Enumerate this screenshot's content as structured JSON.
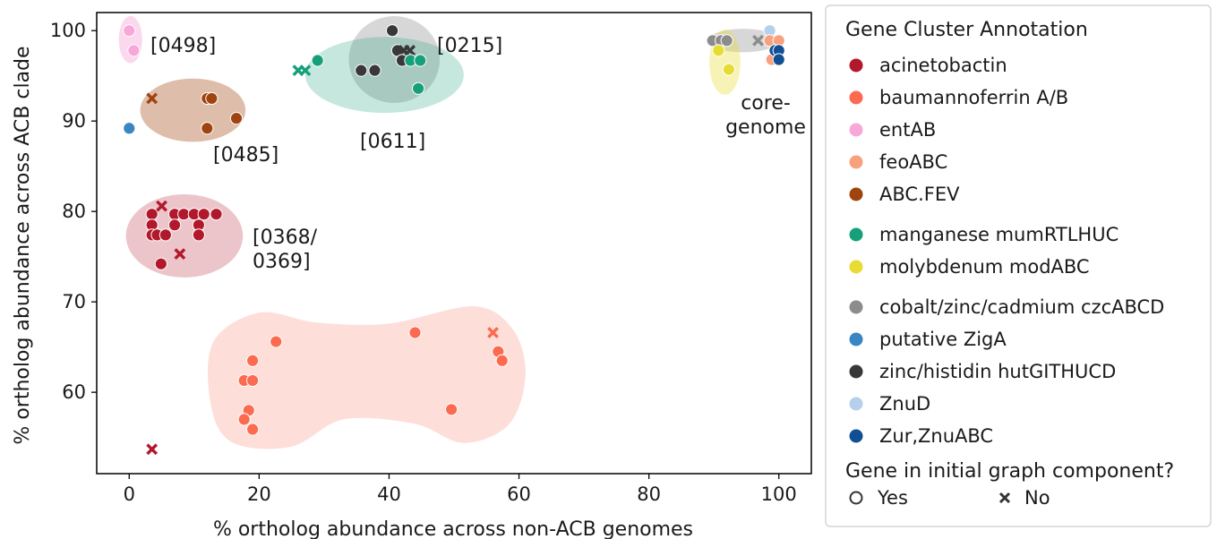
{
  "chart_data": {
    "type": "scatter",
    "title": "",
    "xlabel": "% ortholog abundance across non-ACB genomes",
    "ylabel": "% ortholog abundance across ACB clade",
    "xlim": [
      -5,
      105
    ],
    "ylim": [
      51,
      102
    ],
    "xticks": [
      0,
      20,
      40,
      60,
      80,
      100
    ],
    "yticks": [
      60,
      70,
      80,
      90,
      100
    ],
    "grid": false,
    "legend_position": "right, outside plot",
    "legend_title": "Gene Cluster Annotation",
    "legend_groups": [
      [
        {
          "name": "acinetobactin",
          "color": "#b2182b"
        },
        {
          "name": "baumannoferrin A/B",
          "color": "#fc6a4f"
        },
        {
          "name": "entAB",
          "color": "#f7a8d8"
        },
        {
          "name": "feoABC",
          "color": "#f9a07c"
        },
        {
          "name": "ABC.FEV",
          "color": "#a0440f"
        }
      ],
      [
        {
          "name": "manganese mumRTLHUC",
          "color": "#16a07a"
        },
        {
          "name": "molybdenum modABC",
          "color": "#e8dc32"
        }
      ],
      [
        {
          "name": "cobalt/zinc/cadmium czcABCD",
          "color": "#8c8c8c"
        },
        {
          "name": "putative ZigA",
          "color": "#3886c2"
        },
        {
          "name": "zinc/histidin hutGITHUCD",
          "color": "#383838"
        },
        {
          "name": "ZnuD",
          "color": "#b5d0ea"
        },
        {
          "name": "Zur,ZnuABC",
          "color": "#114f95"
        }
      ]
    ],
    "marker_legend_title": "Gene in initial graph component?",
    "marker_legend": [
      {
        "label": "Yes",
        "marker": "circle"
      },
      {
        "label": "No",
        "marker": "x"
      }
    ],
    "regions": [
      {
        "label": "[0498]",
        "color": "#f7a8d8"
      },
      {
        "label": "[0215]",
        "color": "#8c8c8c"
      },
      {
        "label": "[0611]",
        "color": "#16a07a"
      },
      {
        "label": "[0485]",
        "color": "#a0440f"
      },
      {
        "label": "[0368/\n0369]",
        "color": "#b2182b"
      },
      {
        "label": "core-\ngenome",
        "color": "#8c8c8c"
      },
      {
        "label": "",
        "color": "#e8dc32"
      },
      {
        "label": "",
        "color": "#fc6a4f"
      }
    ],
    "points": [
      {
        "x": 0,
        "y": 100,
        "series": "entAB",
        "in_component": true
      },
      {
        "x": 0.7,
        "y": 97.8,
        "series": "entAB",
        "in_component": true
      },
      {
        "x": 0,
        "y": 89.2,
        "series": "putative ZigA",
        "in_component": true
      },
      {
        "x": 3.5,
        "y": 92.5,
        "series": "ABC.FEV",
        "in_component": false
      },
      {
        "x": 12,
        "y": 92.5,
        "series": "ABC.FEV",
        "in_component": true
      },
      {
        "x": 12.7,
        "y": 92.5,
        "series": "ABC.FEV",
        "in_component": true
      },
      {
        "x": 12,
        "y": 89.2,
        "series": "ABC.FEV",
        "in_component": true
      },
      {
        "x": 16.5,
        "y": 90.3,
        "series": "ABC.FEV",
        "in_component": true
      },
      {
        "x": 40.5,
        "y": 100,
        "series": "zinc/histidin hutGITHUCD",
        "in_component": true
      },
      {
        "x": 41.3,
        "y": 97.8,
        "series": "zinc/histidin hutGITHUCD",
        "in_component": true
      },
      {
        "x": 42.3,
        "y": 97.8,
        "series": "zinc/histidin hutGITHUCD",
        "in_component": false
      },
      {
        "x": 43.2,
        "y": 97.8,
        "series": "zinc/histidin hutGITHUCD",
        "in_component": false
      },
      {
        "x": 42,
        "y": 96.7,
        "series": "zinc/histidin hutGITHUCD",
        "in_component": true
      },
      {
        "x": 35.7,
        "y": 95.6,
        "series": "zinc/histidin hutGITHUCD",
        "in_component": true
      },
      {
        "x": 37.8,
        "y": 95.6,
        "series": "zinc/histidin hutGITHUCD",
        "in_component": true
      },
      {
        "x": 43.3,
        "y": 96.7,
        "series": "manganese mumRTLHUC",
        "in_component": true
      },
      {
        "x": 44.8,
        "y": 96.7,
        "series": "manganese mumRTLHUC",
        "in_component": true
      },
      {
        "x": 44.5,
        "y": 93.6,
        "series": "manganese mumRTLHUC",
        "in_component": true
      },
      {
        "x": 29,
        "y": 96.7,
        "series": "manganese mumRTLHUC",
        "in_component": true
      },
      {
        "x": 26,
        "y": 95.6,
        "series": "manganese mumRTLHUC",
        "in_component": false
      },
      {
        "x": 27.1,
        "y": 95.6,
        "series": "manganese mumRTLHUC",
        "in_component": false
      },
      {
        "x": 3.5,
        "y": 79.7,
        "series": "acinetobactin",
        "in_component": true
      },
      {
        "x": 5,
        "y": 80.6,
        "series": "acinetobactin",
        "in_component": false
      },
      {
        "x": 7,
        "y": 79.7,
        "series": "acinetobactin",
        "in_component": true
      },
      {
        "x": 8.4,
        "y": 79.7,
        "series": "acinetobactin",
        "in_component": true
      },
      {
        "x": 10,
        "y": 79.7,
        "series": "acinetobactin",
        "in_component": true
      },
      {
        "x": 11.5,
        "y": 79.7,
        "series": "acinetobactin",
        "in_component": true
      },
      {
        "x": 13.4,
        "y": 79.7,
        "series": "acinetobactin",
        "in_component": true
      },
      {
        "x": 3.5,
        "y": 78.5,
        "series": "acinetobactin",
        "in_component": true
      },
      {
        "x": 7,
        "y": 78.5,
        "series": "acinetobactin",
        "in_component": true
      },
      {
        "x": 10.7,
        "y": 78.5,
        "series": "acinetobactin",
        "in_component": true
      },
      {
        "x": 3.5,
        "y": 77.4,
        "series": "acinetobactin",
        "in_component": true
      },
      {
        "x": 4.3,
        "y": 77.4,
        "series": "acinetobactin",
        "in_component": true
      },
      {
        "x": 5.6,
        "y": 77.4,
        "series": "acinetobactin",
        "in_component": true
      },
      {
        "x": 10.7,
        "y": 77.4,
        "series": "acinetobactin",
        "in_component": true
      },
      {
        "x": 7.8,
        "y": 75.3,
        "series": "acinetobactin",
        "in_component": false
      },
      {
        "x": 4.9,
        "y": 74.2,
        "series": "acinetobactin",
        "in_component": true
      },
      {
        "x": 3.5,
        "y": 53.7,
        "series": "acinetobactin",
        "in_component": false
      },
      {
        "x": 22.6,
        "y": 65.6,
        "series": "baumannoferrin A/B",
        "in_component": true
      },
      {
        "x": 19,
        "y": 63.5,
        "series": "baumannoferrin A/B",
        "in_component": true
      },
      {
        "x": 17.7,
        "y": 61.3,
        "series": "baumannoferrin A/B",
        "in_component": true
      },
      {
        "x": 19,
        "y": 61.3,
        "series": "baumannoferrin A/B",
        "in_component": true
      },
      {
        "x": 18.4,
        "y": 58,
        "series": "baumannoferrin A/B",
        "in_component": true
      },
      {
        "x": 17.7,
        "y": 57,
        "series": "baumannoferrin A/B",
        "in_component": true
      },
      {
        "x": 19,
        "y": 55.9,
        "series": "baumannoferrin A/B",
        "in_component": true
      },
      {
        "x": 44,
        "y": 66.6,
        "series": "baumannoferrin A/B",
        "in_component": true
      },
      {
        "x": 49.6,
        "y": 58.1,
        "series": "baumannoferrin A/B",
        "in_component": true
      },
      {
        "x": 56,
        "y": 66.6,
        "series": "baumannoferrin A/B",
        "in_component": false
      },
      {
        "x": 56.8,
        "y": 64.5,
        "series": "baumannoferrin A/B",
        "in_component": true
      },
      {
        "x": 57.4,
        "y": 63.5,
        "series": "baumannoferrin A/B",
        "in_component": true
      },
      {
        "x": 89.8,
        "y": 98.9,
        "series": "cobalt/zinc/cadmium czcABCD",
        "in_component": true
      },
      {
        "x": 91.1,
        "y": 98.9,
        "series": "cobalt/zinc/cadmium czcABCD",
        "in_component": true
      },
      {
        "x": 92,
        "y": 98.9,
        "series": "cobalt/zinc/cadmium czcABCD",
        "in_component": true
      },
      {
        "x": 96.8,
        "y": 98.9,
        "series": "cobalt/zinc/cadmium czcABCD",
        "in_component": false
      },
      {
        "x": 90.7,
        "y": 97.8,
        "series": "molybdenum modABC",
        "in_component": true
      },
      {
        "x": 92.3,
        "y": 95.7,
        "series": "molybdenum modABC",
        "in_component": true
      },
      {
        "x": 98.6,
        "y": 100,
        "series": "ZnuD",
        "in_component": true
      },
      {
        "x": 98.6,
        "y": 98.9,
        "series": "feoABC",
        "in_component": true
      },
      {
        "x": 100,
        "y": 98.9,
        "series": "feoABC",
        "in_component": true
      },
      {
        "x": 98.9,
        "y": 96.8,
        "series": "feoABC",
        "in_component": true
      },
      {
        "x": 99.4,
        "y": 97.8,
        "series": "Zur,ZnuABC",
        "in_component": true
      },
      {
        "x": 100,
        "y": 97.8,
        "series": "Zur,ZnuABC",
        "in_component": true
      },
      {
        "x": 100,
        "y": 96.8,
        "series": "Zur,ZnuABC",
        "in_component": true
      }
    ]
  }
}
